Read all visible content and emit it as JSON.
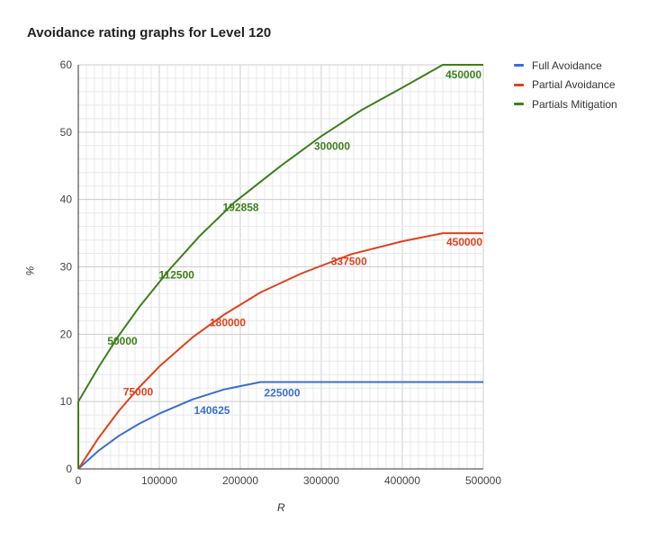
{
  "chart_data": {
    "type": "line",
    "title": "Avoidance rating graphs for Level 120",
    "xlabel": "R",
    "ylabel": "%",
    "xlim": [
      0,
      500000
    ],
    "ylim": [
      0,
      60
    ],
    "x_ticks": [
      "0",
      "100000",
      "200000",
      "300000",
      "400000",
      "500000"
    ],
    "y_ticks": [
      "0",
      "10",
      "20",
      "30",
      "40",
      "50",
      "60"
    ],
    "grid": true,
    "legend_position": "right",
    "series": [
      {
        "name": "Full Avoidance",
        "color": "#3a6fce",
        "points": [
          [
            0,
            0
          ],
          [
            25000,
            2.7
          ],
          [
            50000,
            4.9
          ],
          [
            75000,
            6.7
          ],
          [
            100000,
            8.2
          ],
          [
            140625,
            10.3
          ],
          [
            180000,
            11.8
          ],
          [
            225000,
            12.9
          ],
          [
            300000,
            12.9
          ],
          [
            400000,
            12.9
          ],
          [
            500000,
            12.9
          ]
        ],
        "annotations": [
          {
            "x": 140625,
            "y": 10.3,
            "label": "140625"
          },
          {
            "x": 225000,
            "y": 12.9,
            "label": "225000"
          }
        ]
      },
      {
        "name": "Partial Avoidance",
        "color": "#e2401c",
        "points": [
          [
            0,
            0
          ],
          [
            25000,
            4.6
          ],
          [
            50000,
            8.6
          ],
          [
            75000,
            12.1
          ],
          [
            100000,
            15.2
          ],
          [
            140625,
            19.5
          ],
          [
            180000,
            22.9
          ],
          [
            225000,
            26.2
          ],
          [
            275000,
            29.0
          ],
          [
            337500,
            31.9
          ],
          [
            400000,
            33.8
          ],
          [
            450000,
            35.0
          ],
          [
            500000,
            35.0
          ]
        ],
        "annotations": [
          {
            "x": 75000,
            "y": 12.1,
            "label": "75000"
          },
          {
            "x": 180000,
            "y": 22.9,
            "label": "180000"
          },
          {
            "x": 337500,
            "y": 31.9,
            "label": "337500"
          },
          {
            "x": 450000,
            "y": 35.0,
            "label": "450000"
          }
        ]
      },
      {
        "name": "Partials Mitigation",
        "color": "#3d7f1c",
        "points": [
          [
            0,
            0
          ],
          [
            0,
            10
          ],
          [
            25000,
            15.1
          ],
          [
            50000,
            19.8
          ],
          [
            75000,
            24.0
          ],
          [
            112500,
            29.6
          ],
          [
            150000,
            34.6
          ],
          [
            192858,
            39.6
          ],
          [
            250000,
            45.0
          ],
          [
            300000,
            49.4
          ],
          [
            350000,
            53.3
          ],
          [
            400000,
            56.6
          ],
          [
            450000,
            60
          ],
          [
            500000,
            60
          ]
        ],
        "annotations": [
          {
            "x": 50000,
            "y": 19.8,
            "label": "50000"
          },
          {
            "x": 112500,
            "y": 29.6,
            "label": "112500"
          },
          {
            "x": 192858,
            "y": 39.6,
            "label": "192858"
          },
          {
            "x": 300000,
            "y": 49.4,
            "label": "300000"
          },
          {
            "x": 450000,
            "y": 60,
            "label": "450000"
          }
        ]
      }
    ]
  }
}
